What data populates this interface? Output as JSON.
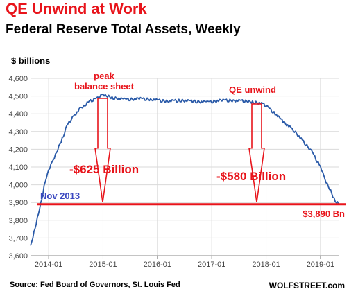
{
  "header": {
    "title": "QE Unwind at Work",
    "subtitle": "Federal Reserve Total Assets, Weekly"
  },
  "footer": {
    "source": "Source: Fed Board of Governors, St. Louis Fed",
    "brand": "WOLFSTREET.com"
  },
  "colors": {
    "title": "#e8141b",
    "line": "#2a5aa8",
    "annotation_red": "#e8141b",
    "annotation_blue": "#3a47c0",
    "grid": "#d9d9d9"
  },
  "chart_data": {
    "type": "line",
    "title": "Federal Reserve Total Assets, Weekly",
    "xlabel": "",
    "ylabel": "$ billions",
    "ylim": [
      3600,
      4600
    ],
    "xlim": [
      "2013-09",
      "2019-05"
    ],
    "grid": true,
    "y_ticks": [
      "3,600",
      "3,700",
      "3,800",
      "3,900",
      "4,000",
      "4,100",
      "4,200",
      "4,300",
      "4,400",
      "4,500",
      "4,600"
    ],
    "x_ticks": [
      "2014-01",
      "2015-01",
      "2016-01",
      "2017-01",
      "2018-01",
      "2019-01"
    ],
    "series": [
      {
        "name": "",
        "x": [
          "2013-09",
          "2013-10",
          "2013-11",
          "2013-12",
          "2014-01",
          "2014-02",
          "2014-03",
          "2014-04",
          "2014-05",
          "2014-06",
          "2014-07",
          "2014-08",
          "2014-09",
          "2014-10",
          "2014-11",
          "2014-12",
          "2015-01",
          "2015-02",
          "2015-03",
          "2015-06",
          "2015-09",
          "2015-12",
          "2016-03",
          "2016-06",
          "2016-09",
          "2016-12",
          "2017-03",
          "2017-06",
          "2017-09",
          "2017-10",
          "2017-12",
          "2018-01",
          "2018-03",
          "2018-05",
          "2018-07",
          "2018-09",
          "2018-11",
          "2019-01",
          "2019-02",
          "2019-03",
          "2019-04",
          "2019-05"
        ],
        "values": [
          3650,
          3760,
          3860,
          3990,
          4080,
          4140,
          4200,
          4260,
          4330,
          4370,
          4400,
          4430,
          4450,
          4470,
          4480,
          4490,
          4510,
          4500,
          4490,
          4480,
          4485,
          4480,
          4470,
          4475,
          4470,
          4465,
          4475,
          4475,
          4470,
          4465,
          4460,
          4445,
          4400,
          4350,
          4310,
          4250,
          4190,
          4100,
          4030,
          3980,
          3920,
          3890
        ]
      }
    ],
    "annotations": {
      "peak_label_line1": "peak",
      "peak_label_line2": "balance sheet",
      "unwind_label": "QE unwind",
      "decline_1": "-$625 Billion",
      "decline_2": "-$580 Billion",
      "start_label": "Nov 2013",
      "end_label": "$3,890 Bn",
      "reference_value": 3890
    }
  }
}
